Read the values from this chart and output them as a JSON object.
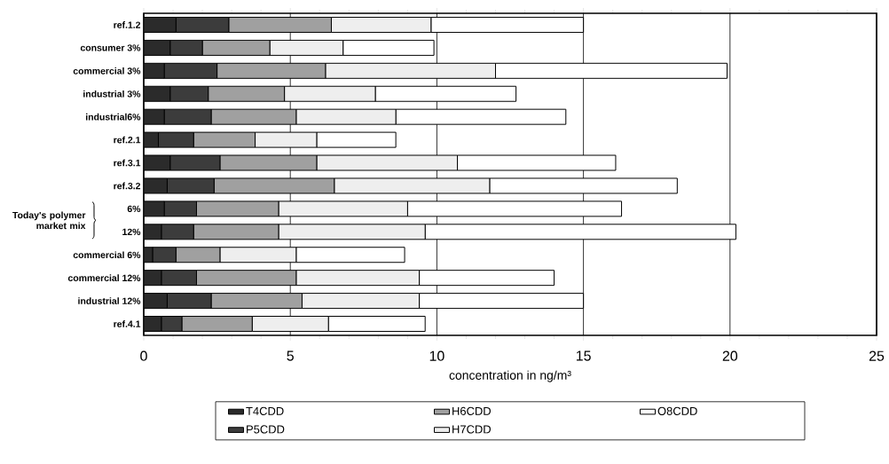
{
  "chart_data": {
    "type": "bar",
    "orientation": "horizontal",
    "stacked": true,
    "categories": [
      "ref.1.2",
      "consumer 3%",
      "commercial 3%",
      "industrial 3%",
      "industrial6%",
      "ref.2.1",
      "ref.3.1",
      "ref.3.2",
      "6%",
      "12%",
      "commercial 6%",
      "commercial 12%",
      "industrial 12%",
      "ref.4.1"
    ],
    "series": [
      {
        "name": "T4CDD",
        "color": "#2b2b2b",
        "values": [
          1.1,
          0.9,
          0.7,
          0.9,
          0.7,
          0.5,
          0.9,
          0.8,
          0.7,
          0.6,
          0.3,
          0.6,
          0.8,
          0.6
        ]
      },
      {
        "name": "P5CDD",
        "color": "#3c3c3c",
        "values": [
          1.8,
          1.1,
          1.8,
          1.3,
          1.6,
          1.2,
          1.7,
          1.6,
          1.1,
          1.1,
          0.8,
          1.2,
          1.5,
          0.7
        ]
      },
      {
        "name": "H6CDD",
        "color": "#a0a0a0",
        "values": [
          3.5,
          2.3,
          3.7,
          2.6,
          2.9,
          2.1,
          3.3,
          4.1,
          2.8,
          2.9,
          1.5,
          3.4,
          3.1,
          2.4
        ]
      },
      {
        "name": "H7CDD",
        "color": "#eeeeee",
        "values": [
          3.4,
          2.5,
          5.8,
          3.1,
          3.4,
          2.1,
          4.8,
          5.3,
          4.4,
          5.0,
          2.6,
          4.2,
          4.0,
          2.6
        ]
      },
      {
        "name": "O8CDD",
        "color": "#ffffff",
        "values": [
          5.2,
          3.1,
          7.9,
          4.8,
          5.8,
          2.7,
          5.4,
          6.4,
          7.3,
          10.6,
          3.7,
          4.6,
          5.6,
          3.3
        ]
      }
    ],
    "xlim": [
      0,
      25
    ],
    "xticks": [
      0,
      5,
      10,
      15,
      20,
      25
    ],
    "xlabel": "concentration in ng/m³",
    "annotations": [
      "Today's polymer market mix"
    ],
    "grid": "x",
    "legend": "bottom"
  }
}
